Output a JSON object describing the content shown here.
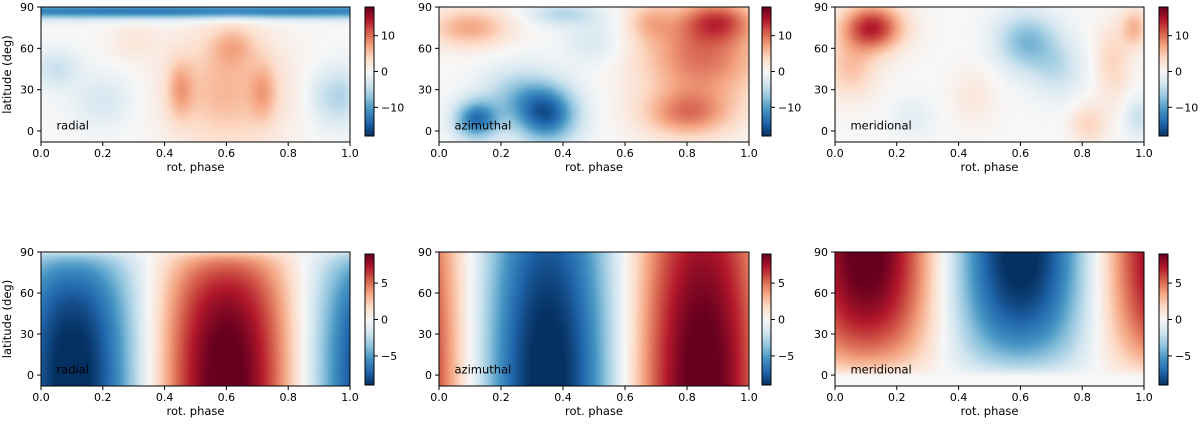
{
  "figure": {
    "colormap": [
      "#053061",
      "#2166ac",
      "#4393c3",
      "#92c5de",
      "#d1e5f0",
      "#f7f7f7",
      "#fddbc7",
      "#f4a582",
      "#d6604d",
      "#b2182b",
      "#67001f"
    ]
  },
  "chart_data": [
    {
      "type": "heatmap",
      "panel_row": 1,
      "annotation": "radial",
      "xlabel": "rot. phase",
      "ylabel": "latitude (deg)",
      "xlim": [
        0.0,
        1.0
      ],
      "ylim": [
        -8,
        90
      ],
      "xticks": [
        "0.0",
        "0.2",
        "0.4",
        "0.6",
        "0.8",
        "1.0"
      ],
      "yticks": [
        "0",
        "30",
        "60",
        "90"
      ],
      "colorbar": {
        "min": -18,
        "max": 18,
        "ticks": [
          10,
          0,
          -10
        ],
        "tick_labels": [
          "10",
          "0",
          "−10"
        ]
      },
      "blobs": [
        {
          "x": 0.5,
          "y": 87,
          "sx": 1.2,
          "sy": 4,
          "v": -13
        },
        {
          "x": 0.6,
          "y": 30,
          "sx": 0.13,
          "sy": 30,
          "v": 6
        },
        {
          "x": 0.45,
          "y": 30,
          "sx": 0.03,
          "sy": 15,
          "v": 5
        },
        {
          "x": 0.72,
          "y": 28,
          "sx": 0.03,
          "sy": 15,
          "v": 4
        },
        {
          "x": 0.62,
          "y": 62,
          "sx": 0.05,
          "sy": 10,
          "v": 4
        },
        {
          "x": 0.92,
          "y": 25,
          "sx": 0.04,
          "sy": 15,
          "v": -4
        },
        {
          "x": 0.05,
          "y": 45,
          "sx": 0.05,
          "sy": 10,
          "v": -4
        },
        {
          "x": 0.2,
          "y": 22,
          "sx": 0.07,
          "sy": 14,
          "v": -3
        },
        {
          "x": 0.98,
          "y": 25,
          "sx": 0.03,
          "sy": 15,
          "v": -4
        },
        {
          "x": 0.3,
          "y": 65,
          "sx": 0.06,
          "sy": 10,
          "v": 2
        }
      ],
      "bias": 0
    },
    {
      "type": "heatmap",
      "panel_row": 1,
      "annotation": "azimuthal",
      "xlabel": "rot. phase",
      "ylabel": "",
      "xlim": [
        0.0,
        1.0
      ],
      "ylim": [
        -8,
        90
      ],
      "xticks": [
        "0.0",
        "0.2",
        "0.4",
        "0.6",
        "0.8",
        "1.0"
      ],
      "yticks": [
        "0",
        "30",
        "60",
        "90"
      ],
      "colorbar": {
        "min": -18,
        "max": 18,
        "ticks": [
          10,
          0,
          -10
        ],
        "tick_labels": [
          "10",
          "0",
          "−10"
        ]
      },
      "blobs": [
        {
          "x": 0.35,
          "y": 12,
          "sx": 0.07,
          "sy": 15,
          "v": -14
        },
        {
          "x": 0.12,
          "y": 8,
          "sx": 0.05,
          "sy": 10,
          "v": -13
        },
        {
          "x": 0.25,
          "y": 25,
          "sx": 0.08,
          "sy": 15,
          "v": -6
        },
        {
          "x": 0.85,
          "y": 55,
          "sx": 0.14,
          "sy": 25,
          "v": 10
        },
        {
          "x": 0.9,
          "y": 80,
          "sx": 0.08,
          "sy": 10,
          "v": 8
        },
        {
          "x": 0.1,
          "y": 75,
          "sx": 0.09,
          "sy": 10,
          "v": 7
        },
        {
          "x": 0.8,
          "y": 12,
          "sx": 0.1,
          "sy": 12,
          "v": 8
        },
        {
          "x": 0.5,
          "y": 65,
          "sx": 0.07,
          "sy": 12,
          "v": -3
        },
        {
          "x": 0.4,
          "y": 85,
          "sx": 0.08,
          "sy": 6,
          "v": -5
        },
        {
          "x": 0.68,
          "y": 80,
          "sx": 0.05,
          "sy": 10,
          "v": 4
        }
      ],
      "bias": 0
    },
    {
      "type": "heatmap",
      "panel_row": 1,
      "annotation": "meridional",
      "xlabel": "rot. phase",
      "ylabel": "",
      "xlim": [
        0.0,
        1.0
      ],
      "ylim": [
        -8,
        90
      ],
      "xticks": [
        "0.0",
        "0.2",
        "0.4",
        "0.6",
        "0.8",
        "1.0"
      ],
      "yticks": [
        "0",
        "30",
        "60",
        "90"
      ],
      "colorbar": {
        "min": -18,
        "max": 18,
        "ticks": [
          10,
          0,
          -10
        ],
        "tick_labels": [
          "10",
          "0",
          "−10"
        ]
      },
      "blobs": [
        {
          "x": 0.12,
          "y": 75,
          "sx": 0.07,
          "sy": 12,
          "v": 14
        },
        {
          "x": 0.05,
          "y": 45,
          "sx": 0.06,
          "sy": 15,
          "v": 5
        },
        {
          "x": 0.62,
          "y": 65,
          "sx": 0.07,
          "sy": 15,
          "v": -8
        },
        {
          "x": 0.72,
          "y": 45,
          "sx": 0.06,
          "sy": 15,
          "v": -4
        },
        {
          "x": 0.9,
          "y": 50,
          "sx": 0.04,
          "sy": 20,
          "v": 4
        },
        {
          "x": 0.97,
          "y": 75,
          "sx": 0.03,
          "sy": 10,
          "v": 6
        },
        {
          "x": 0.82,
          "y": 5,
          "sx": 0.04,
          "sy": 10,
          "v": 4
        },
        {
          "x": 0.98,
          "y": 10,
          "sx": 0.03,
          "sy": 10,
          "v": -4
        },
        {
          "x": 0.45,
          "y": 25,
          "sx": 0.05,
          "sy": 15,
          "v": 2
        },
        {
          "x": 0.25,
          "y": 10,
          "sx": 0.05,
          "sy": 10,
          "v": -2
        }
      ],
      "bias": 0
    },
    {
      "type": "heatmap",
      "panel_row": 2,
      "annotation": "radial",
      "xlabel": "rot. phase",
      "ylabel": "latitude (deg)",
      "xlim": [
        0.0,
        1.0
      ],
      "ylim": [
        -8,
        90
      ],
      "xticks": [
        "0.0",
        "0.2",
        "0.4",
        "0.6",
        "0.8",
        "1.0"
      ],
      "yticks": [
        "0",
        "30",
        "60",
        "90"
      ],
      "colorbar": {
        "min": -9,
        "max": 9,
        "ticks": [
          5,
          0,
          -5
        ],
        "tick_labels": [
          "5",
          "0",
          "−5"
        ]
      },
      "smooth": {
        "field": "radial",
        "amp": 9.5,
        "phase0": 0.6
      }
    },
    {
      "type": "heatmap",
      "panel_row": 2,
      "annotation": "azimuthal",
      "xlabel": "rot. phase",
      "ylabel": "",
      "xlim": [
        0.0,
        1.0
      ],
      "ylim": [
        -8,
        90
      ],
      "xticks": [
        "0.0",
        "0.2",
        "0.4",
        "0.6",
        "0.8",
        "1.0"
      ],
      "yticks": [
        "0",
        "30",
        "60",
        "90"
      ],
      "colorbar": {
        "min": -9,
        "max": 9,
        "ticks": [
          5,
          0,
          -5
        ],
        "tick_labels": [
          "5",
          "0",
          "−5"
        ]
      },
      "smooth": {
        "field": "azimuthal",
        "amp": 9.5,
        "phase0": 0.85
      }
    },
    {
      "type": "heatmap",
      "panel_row": 2,
      "annotation": "meridional",
      "xlabel": "rot. phase",
      "ylabel": "",
      "xlim": [
        0.0,
        1.0
      ],
      "ylim": [
        -8,
        90
      ],
      "xticks": [
        "0.0",
        "0.2",
        "0.4",
        "0.6",
        "0.8",
        "1.0"
      ],
      "yticks": [
        "0",
        "30",
        "60",
        "90"
      ],
      "colorbar": {
        "min": -9,
        "max": 9,
        "ticks": [
          5,
          0,
          -5
        ],
        "tick_labels": [
          "5",
          "0",
          "−5"
        ]
      },
      "smooth": {
        "field": "meridional",
        "amp": 9.5,
        "phase0": 0.1
      }
    }
  ]
}
